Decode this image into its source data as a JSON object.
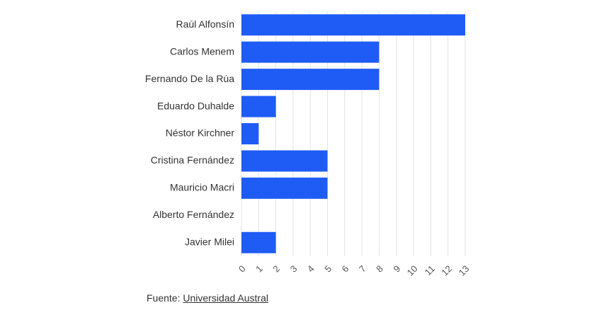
{
  "chart_data": {
    "type": "bar",
    "orientation": "horizontal",
    "categories": [
      "Raúl Alfonsín",
      "Carlos Menem",
      "Fernando De la Rúa",
      "Eduardo Duhalde",
      "Néstor Kirchner",
      "Cristina Fernández",
      "Mauricio Macri",
      "Alberto Fernández",
      "Javier Milei"
    ],
    "values": [
      13,
      8,
      8,
      2,
      1,
      5,
      5,
      0,
      2
    ],
    "color": "#1f5cf5",
    "xlim": [
      0,
      13
    ],
    "xticks": [
      0,
      1,
      2,
      3,
      4,
      5,
      6,
      7,
      8,
      9,
      10,
      11,
      12,
      13
    ],
    "grid": true
  },
  "footer": {
    "label": "Fuente:",
    "link": "Universidad Austral"
  }
}
